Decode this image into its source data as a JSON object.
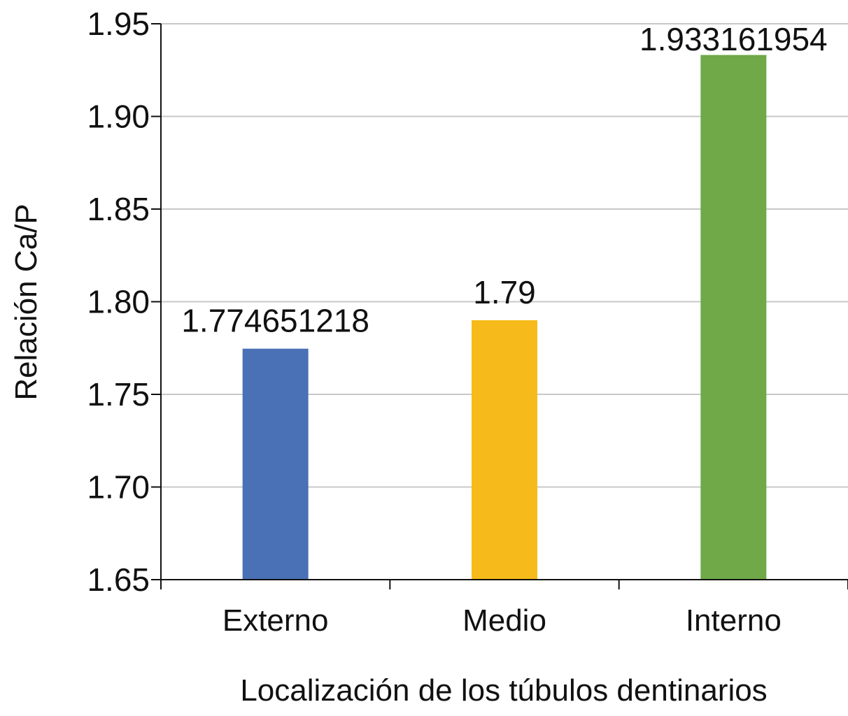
{
  "chart_data": {
    "type": "bar",
    "categories": [
      "Externo",
      "Medio",
      "Interno"
    ],
    "values": [
      1.774651218,
      1.79,
      1.933161954
    ],
    "data_labels": [
      "1.774651218",
      "1.79",
      "1.933161954"
    ],
    "bar_colors": [
      "#4a70b6",
      "#f6bb1a",
      "#6fa948"
    ],
    "title": "",
    "xlabel": "Localización de los túbulos dentinarios",
    "ylabel": "Relación Ca/P",
    "ylim": [
      1.65,
      1.95
    ],
    "yticks": [
      1.65,
      1.7,
      1.75,
      1.8,
      1.85,
      1.9,
      1.95
    ],
    "ytick_labels": [
      "1.65",
      "1.70",
      "1.75",
      "1.80",
      "1.85",
      "1.90",
      "1.95"
    ],
    "grid": true,
    "legend": "none",
    "gridline_color": "#c8c8c8",
    "axis_color": "#111111"
  }
}
